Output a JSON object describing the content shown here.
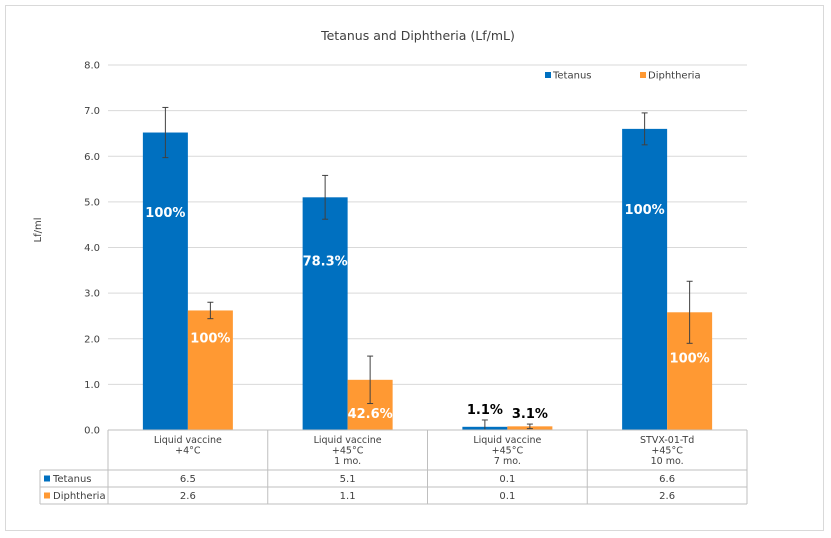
{
  "chart_data": {
    "type": "bar",
    "title": "Tetanus and Diphtheria (Lf/mL)",
    "ylabel": "Lf/ml",
    "ylim": [
      0,
      8
    ],
    "yticks": [
      "0.0",
      "1.0",
      "2.0",
      "3.0",
      "4.0",
      "5.0",
      "6.0",
      "7.0",
      "8.0"
    ],
    "grid": true,
    "legend_position": "top-right",
    "categories": [
      [
        "Liquid vaccine",
        "+4°C"
      ],
      [
        "Liquid vaccine",
        "+45°C",
        "1 mo."
      ],
      [
        "Liquid vaccine",
        "+45°C",
        "7 mo."
      ],
      [
        "STVX-01-Td",
        "+45°C",
        "10 mo."
      ]
    ],
    "series": [
      {
        "name": "Tetanus",
        "color": "#0070C0",
        "values": [
          6.52,
          5.1,
          0.07,
          6.6
        ],
        "errors": [
          0.55,
          0.48,
          0.15,
          0.35
        ],
        "labels": [
          "100%",
          "78.3%",
          "1.1%",
          "100%"
        ],
        "table_values": [
          "6.5",
          "5.1",
          "0.1",
          "6.6"
        ]
      },
      {
        "name": "Diphtheria",
        "color": "#FF9933",
        "values": [
          2.62,
          1.1,
          0.08,
          2.58
        ],
        "errors": [
          0.18,
          0.52,
          0.05,
          0.68
        ],
        "labels": [
          "100%",
          "42.6%",
          "3.1%",
          "100%"
        ],
        "table_values": [
          "2.6",
          "1.1",
          "0.1",
          "2.6"
        ]
      }
    ]
  }
}
